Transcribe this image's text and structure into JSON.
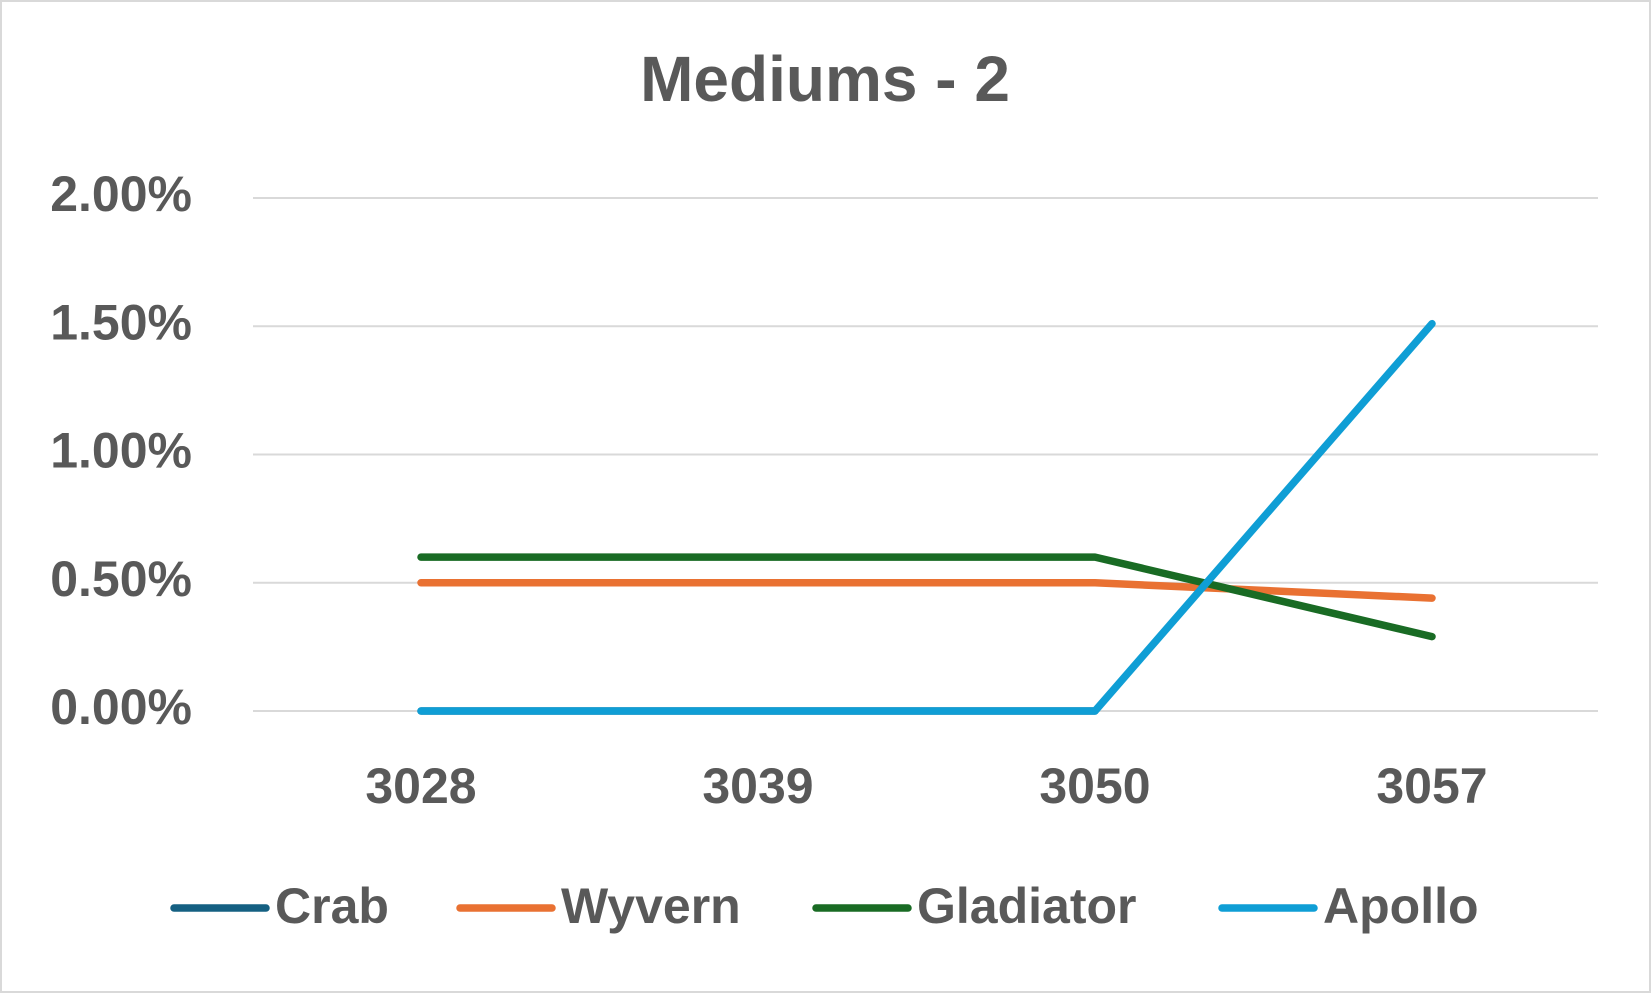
{
  "chart_data": {
    "type": "line",
    "title": "Mediums - 2",
    "categories": [
      "3028",
      "3039",
      "3050",
      "3057"
    ],
    "series": [
      {
        "name": "Crab",
        "color": "#156082",
        "values": [
          0,
          0,
          0,
          null
        ]
      },
      {
        "name": "Wyvern",
        "color": "#e97132",
        "values": [
          0.5,
          0.5,
          0.5,
          0.44
        ]
      },
      {
        "name": "Gladiator",
        "color": "#196b24",
        "values": [
          0.6,
          0.6,
          0.6,
          0.29
        ]
      },
      {
        "name": "Apollo",
        "color": "#0f9ed5",
        "values": [
          0,
          0,
          0,
          1.51
        ]
      }
    ],
    "ylim": [
      0,
      2
    ],
    "yticks": [
      {
        "value": 0,
        "label": "0.00%"
      },
      {
        "value": 0.5,
        "label": "0.50%"
      },
      {
        "value": 1,
        "label": "1.00%"
      },
      {
        "value": 1.5,
        "label": "1.50%"
      },
      {
        "value": 2,
        "label": "2.00%"
      }
    ],
    "grid": true,
    "legend": "bottom"
  }
}
